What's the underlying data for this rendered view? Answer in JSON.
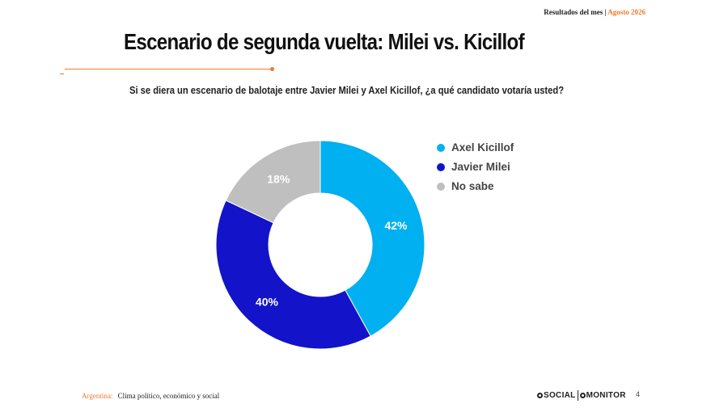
{
  "header": {
    "left": "Resultados del mes",
    "separator": "|",
    "right": "Agosto 2026"
  },
  "title": "Escenario de segunda vuelta: Milei vs. Kicillof",
  "question": "Si se diera un escenario de balotaje entre Javier Milei y Axel Kicillof, ¿a qué candidato votaría usted?",
  "chart_data": {
    "type": "pie",
    "style": "donut",
    "legend_position": "right",
    "categories": [
      "Axel Kicillof",
      "Javier Milei",
      "No sabe"
    ],
    "values": [
      42,
      40,
      18
    ],
    "labels": [
      "42%",
      "40%",
      "18%"
    ],
    "colors": [
      "#00b0f0",
      "#1313c9",
      "#bfbfbf"
    ]
  },
  "footer": {
    "country": "Argentina:",
    "subtitle": "Clima político, económico y social",
    "logo_social": "SOCIAL",
    "logo_monitor": "MONITOR",
    "page_number": "4"
  }
}
